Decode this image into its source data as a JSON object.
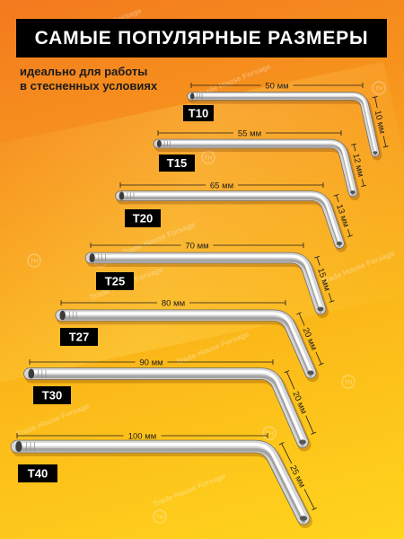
{
  "title": "САМЫЕ ПОПУЛЯРНЫЕ РАЗМЕРЫ",
  "subtitle": [
    "идеально для работы",
    "в стесненных условиях"
  ],
  "keys": [
    {
      "label": "T10",
      "length": "50 мм",
      "leg": "10 мм"
    },
    {
      "label": "T15",
      "length": "55 мм",
      "leg": "12 мм"
    },
    {
      "label": "T20",
      "length": "65 мм",
      "leg": "13 мм"
    },
    {
      "label": "T25",
      "length": "70 мм",
      "leg": "15 мм"
    },
    {
      "label": "T27",
      "length": "80 мм",
      "leg": "20 мм"
    },
    {
      "label": "T30",
      "length": "90 мм",
      "leg": "20 мм"
    },
    {
      "label": "T40",
      "length": "100 мм",
      "leg": "25 мм"
    }
  ],
  "watermark": "Trade House Forsage",
  "watermark_logo": "TH",
  "colors": {
    "banner": "#000000",
    "label": "#000000",
    "label_text": "#ffffff",
    "dimension": "#1c1c1c",
    "metal": "#d6d6d6",
    "metal_edge": "#6e6e6e"
  }
}
